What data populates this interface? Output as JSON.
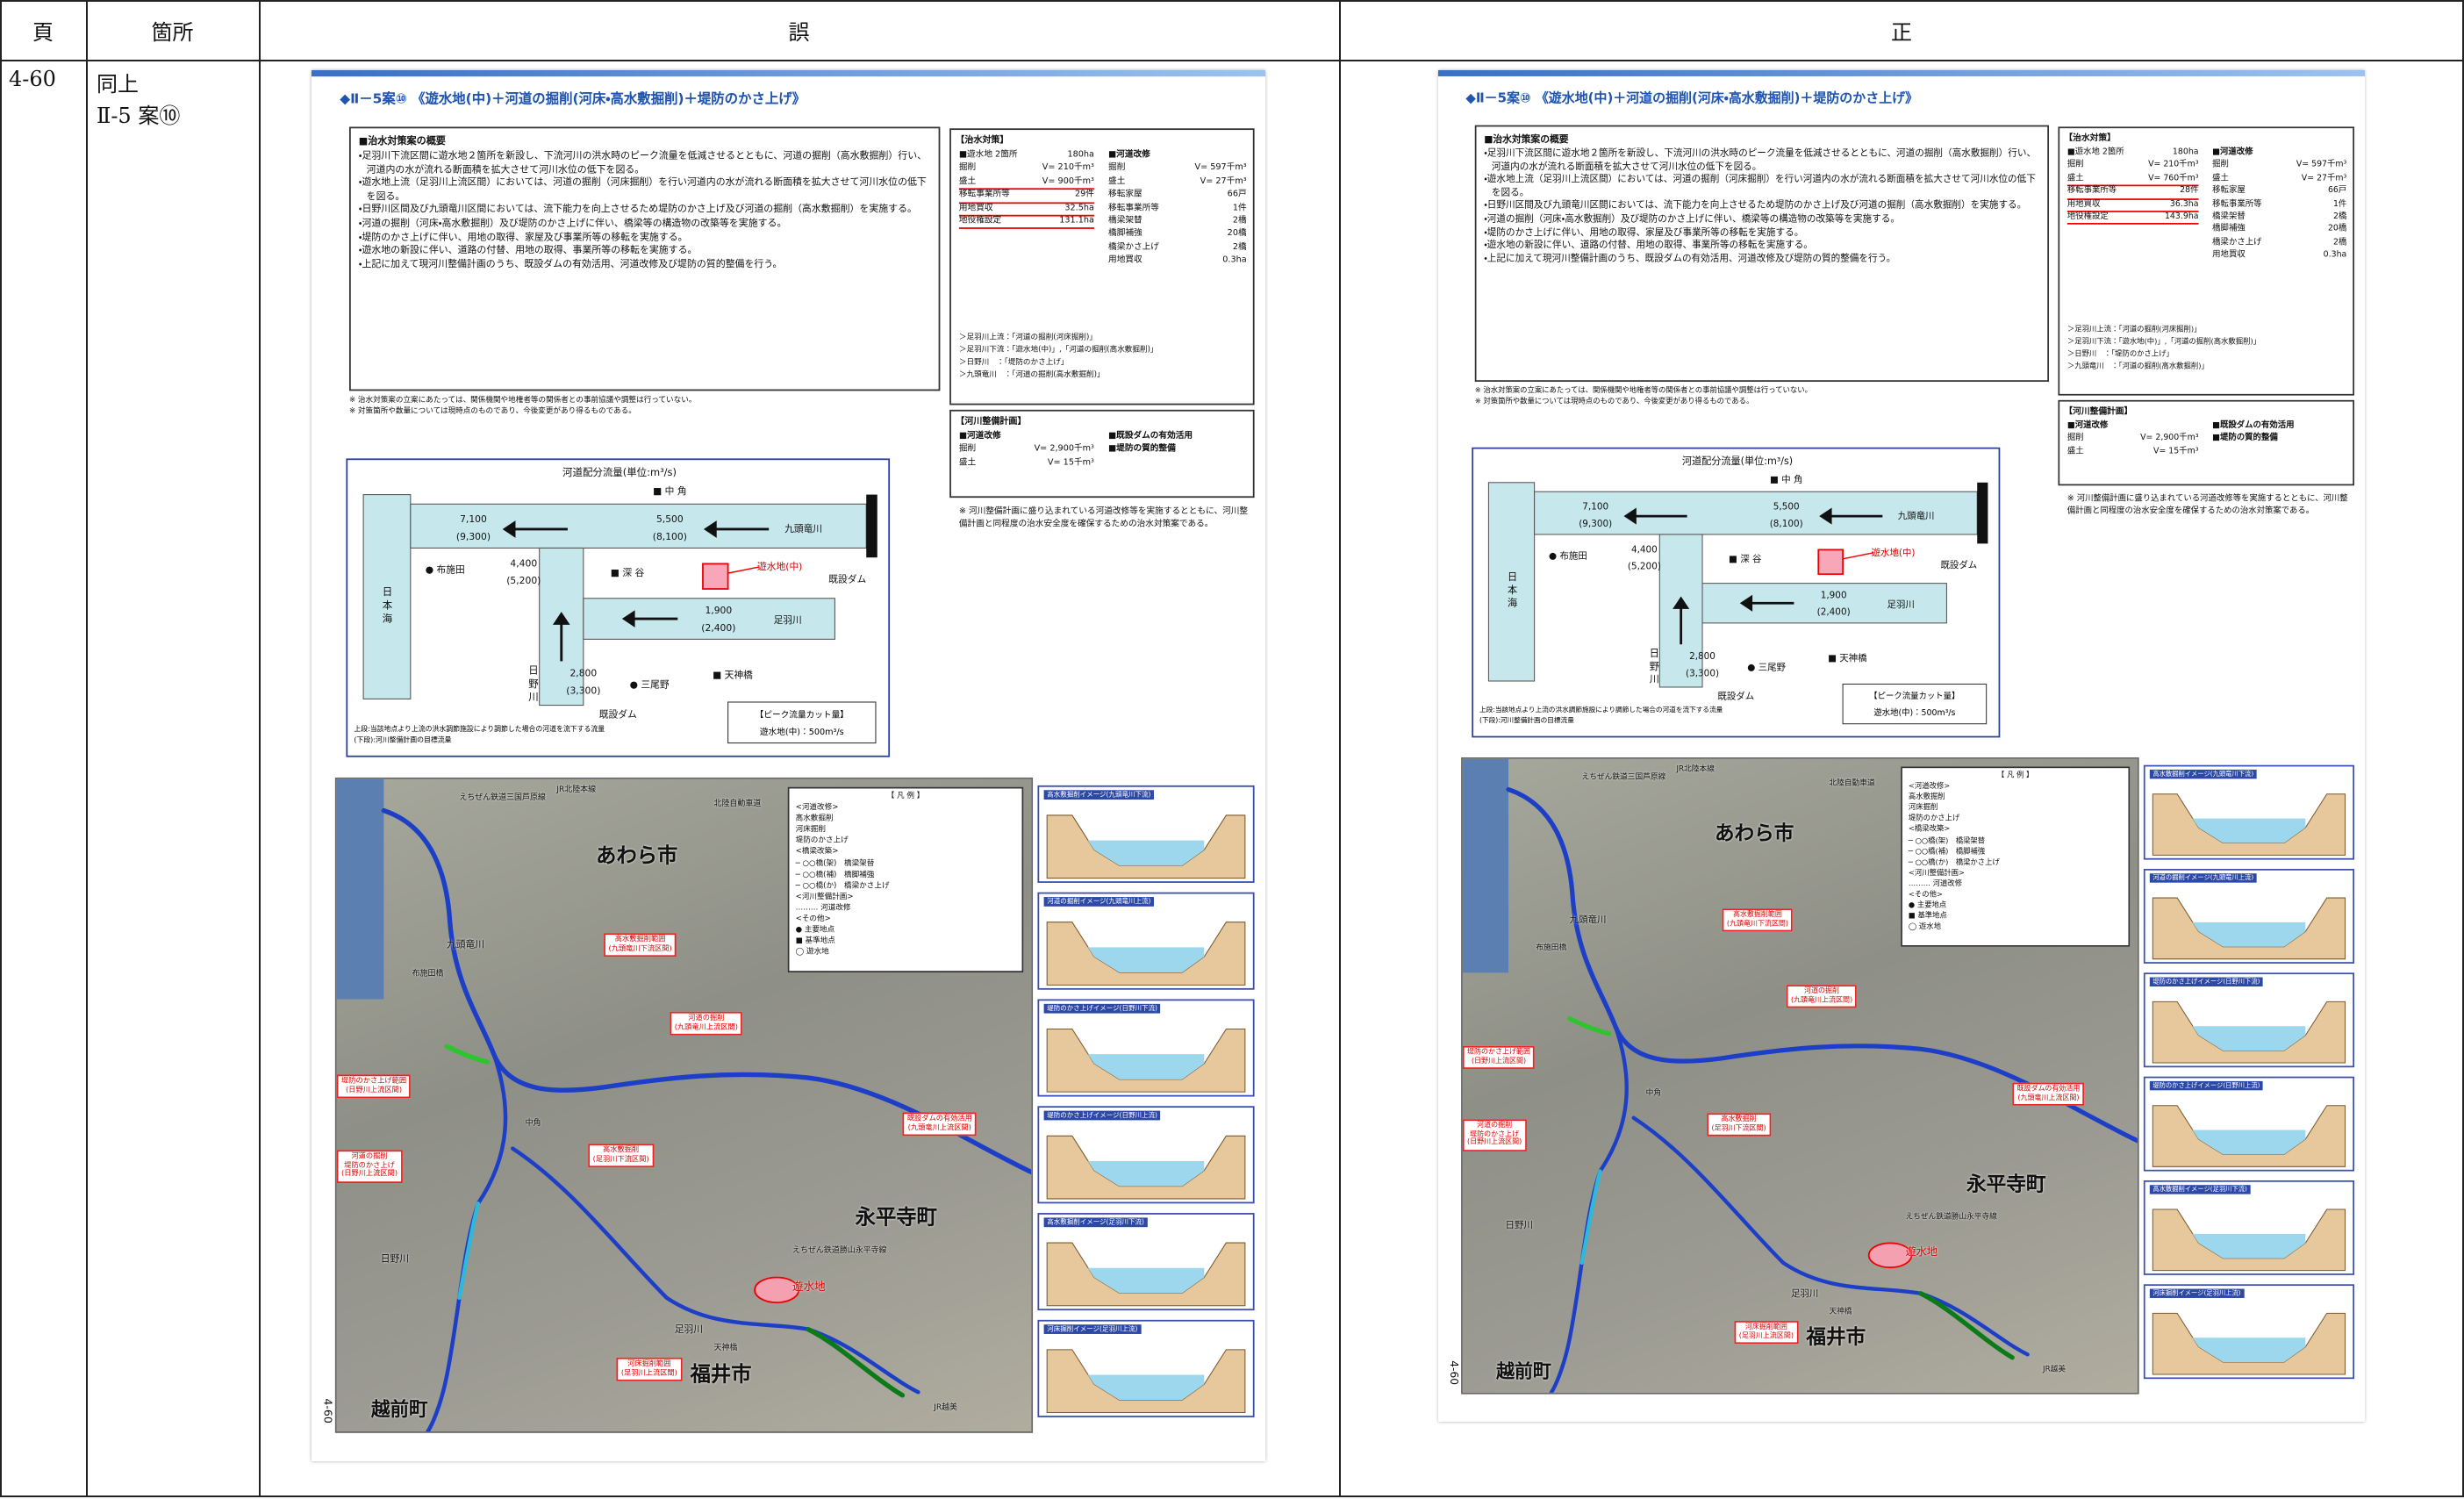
{
  "header": {
    "page": "頁",
    "location": "箇所",
    "wrong": "誤",
    "correct": "正"
  },
  "row": {
    "page": "4-60",
    "location": [
      "同上",
      "Ⅱ-5 案⑩"
    ]
  },
  "panels": [
    {
      "title": "◆Ⅱ－5案⑩ 《遊水地(中)＋河道の掘削(河床・高水敷掘削)＋堤防のかさ上げ》",
      "overview_heading": "■治水対策案の概要",
      "bullets": [
        "・足羽川下流区間に遊水地２箇所を新設し、下流河川の洪水時のピーク流量を低減させるとともに、河道の掘削（高水敷掘削）行い、河道内の水が流れる断面積を拡大させて河川水位の低下を図る。",
        "・遊水地上流（足羽川上流区間）においては、河道の掘削（河床掘削）を行い河道内の水が流れる断面積を拡大させて河川水位の低下を図る。",
        "・日野川区間及び九頭竜川区間においては、流下能力を向上させるため堤防のかさ上げ及び河道の掘削（高水敷掘削）を実施する。",
        "・河道の掘削（河床・高水敷掘削）及び堤防のかさ上げに伴い、橋梁等の構造物の改築等を実施する。",
        "・堤防のかさ上げに伴い、用地の取得、家屋及び事業所等の移転を実施する。",
        "・遊水地の新設に伴い、道路の付替、用地の取得、事業所等の移転を実施する。",
        "・上記に加えて現河川整備計画のうち、既設ダムの有効活用、河道改修及び堤防の質的整備を行う。"
      ],
      "notes": [
        "※ 治水対策案の立案にあたっては、関係機関や地権者等の関係者との事前協議や調整は行っていない。",
        "※ 対策箇所や数量については現時点のものであり、今後変更があり得るものである。"
      ],
      "measures": {
        "heading": "【治水対策】",
        "left": [
          [
            "■遊水地 2箇所",
            "180ha"
          ],
          [
            "掘削",
            "V= 210千m³"
          ],
          [
            "盛土",
            "V= 900千m³"
          ],
          [
            "移転事業所等",
            "29件"
          ],
          [
            "用地買収",
            "32.5ha"
          ],
          [
            "地役権設定",
            "131.1ha"
          ]
        ],
        "right": [
          [
            "■河道改修"
          ],
          [
            "掘削",
            "V= 597千m³"
          ],
          [
            "盛土",
            "V= 27千m³"
          ],
          [
            "移転家屋",
            "66戸"
          ],
          [
            "移転事業所等",
            "1件"
          ],
          [
            "橋梁架替",
            "2橋"
          ],
          [
            "橋脚補強",
            "20橋"
          ],
          [
            "橋梁かさ上げ",
            "2橋"
          ],
          [
            "用地買収",
            "0.3ha"
          ]
        ],
        "rivers": [
          "＞足羽川上流：「河道の掘削(河床掘削)」",
          "＞足羽川下流：「遊水地(中)」,「河道の掘削(高水敷掘削)」",
          "＞日野川　：「堤防のかさ上げ」",
          "＞九頭竜川　：「河道の掘削(高水敷掘削)」"
        ]
      },
      "plan": {
        "heading": "【河川整備計画】",
        "left": [
          [
            "■河道改修"
          ],
          [
            "掘削",
            "V= 2,900千m³"
          ],
          [
            "盛土",
            "V= 15千m³"
          ]
        ],
        "right": [
          [
            "■既設ダムの有効活用"
          ],
          [
            "■堤防の質的整備"
          ]
        ],
        "note": "※ 河川整備計画に盛り込まれている河道改修等を実施するとともに、河川整備計画と同程度の治水安全度を確保するための治水対策案である。"
      },
      "flow": {
        "title": "河道配分流量(単位:m³/s)",
        "labels": [
          "■ 中 角",
          "7,100",
          "(9,300)",
          "5,500",
          "(8,100)",
          "九頭竜川",
          "日 本 海",
          "● 布施田",
          "4,400",
          "(5,200)",
          "■ 深 谷",
          "遊水地(中)",
          "既設ダム",
          "1,900",
          "(2,400)",
          "足羽川",
          "■ 天神橋",
          "2,800",
          "(3,300)",
          "● 三尾野",
          "日 野 川",
          "既設ダム"
        ],
        "caption": [
          "上段:当該地点より上流の洪水調節施設により調節した場合の河道を流下する流量",
          "(下段):河川整備計画の目標流量"
        ],
        "cut_title": "【ピーク流量カット量】",
        "cut_value": "遊水地(中)：500m³/s"
      },
      "map": {
        "labels": [
          "あわら市",
          "永平寺町",
          "福井市",
          "越前町",
          "九頭竜川",
          "足羽川",
          "日野川",
          "遊水地",
          "JR北陸本線",
          "えちぜん鉄道三国芦原線",
          "北陸自動車道",
          "天神橋",
          "中角",
          "布施田橋",
          "えちぜん鉄道勝山永平寺線",
          "JR越美"
        ],
        "annotations": [
          "高水敷掘削範囲\n(九頭竜川下流区間)",
          "河道の掘削\n(九頭竜川上流区間)",
          "堤防のかさ上げ範囲\n(日野川上流区間)",
          "河道の掘削\n堤防のかさ上げ\n(日野川上流区間)",
          "高水敷掘削\n(足羽川下流区間)",
          "既設ダムの有効活用\n(九頭竜川上流区間)",
          "河床掘削範囲\n(足羽川上流区間)"
        ],
        "legend": [
          "【 凡 例 】",
          "<河道改修>",
          "高水敷掘削",
          "河床掘削",
          "堤防のかさ上げ",
          "<橋梁改築>",
          "─ ○○橋(架)　橋梁架替",
          "─ ○○橋(補)　橋脚補強",
          "─ ○○橋(か)　橋梁かさ上げ",
          "<河川整備計画>",
          "……… 河道改修",
          "<その他>",
          "● 主要地点",
          "■ 基準地点",
          "◯ 遊水地"
        ]
      },
      "sections": [
        "高水敷掘削イメージ(九頭竜川下流)",
        "河道の掘削イメージ(九頭竜川上流)",
        "堤防のかさ上げイメージ(日野川下流)",
        "堤防のかさ上げイメージ(日野川上流)",
        "高水敷掘削イメージ(足羽川下流)",
        "河床掘削イメージ(足羽川上流)"
      ],
      "page_number": "4-60"
    },
    {
      "title": "◆Ⅱ－5案⑩ 《遊水地(中)＋河道の掘削(河床・高水敷掘削)＋堤防のかさ上げ》",
      "overview_heading": "■治水対策案の概要",
      "bullets": [
        "・足羽川下流区間に遊水地２箇所を新設し、下流河川の洪水時のピーク流量を低減させるとともに、河道の掘削（高水敷掘削）行い、河道内の水が流れる断面積を拡大させて河川水位の低下を図る。",
        "・遊水地上流（足羽川上流区間）においては、河道の掘削（河床掘削）を行い河道内の水が流れる断面積を拡大させて河川水位の低下を図る。",
        "・日野川区間及び九頭竜川区間においては、流下能力を向上させるため堤防のかさ上げ及び河道の掘削（高水敷掘削）を実施する。",
        "・河道の掘削（河床・高水敷掘削）及び堤防のかさ上げに伴い、橋梁等の構造物の改築等を実施する。",
        "・堤防のかさ上げに伴い、用地の取得、家屋及び事業所等の移転を実施する。",
        "・遊水地の新設に伴い、道路の付替、用地の取得、事業所等の移転を実施する。",
        "・上記に加えて現河川整備計画のうち、既設ダムの有効活用、河道改修及び堤防の質的整備を行う。"
      ],
      "notes": [
        "※ 治水対策案の立案にあたっては、関係機関や地権者等の関係者との事前協議や調整は行っていない。",
        "※ 対策箇所や数量については現時点のものであり、今後変更があり得るものである。"
      ],
      "measures": {
        "heading": "【治水対策】",
        "left": [
          [
            "■遊水地 2箇所",
            "180ha"
          ],
          [
            "掘削",
            "V= 210千m³"
          ],
          [
            "盛土",
            "V= 760千m³"
          ],
          [
            "移転事業所等",
            "28件"
          ],
          [
            "用地買収",
            "36.3ha"
          ],
          [
            "地役権設定",
            "143.9ha"
          ]
        ],
        "right": [
          [
            "■河道改修"
          ],
          [
            "掘削",
            "V= 597千m³"
          ],
          [
            "盛土",
            "V= 27千m³"
          ],
          [
            "移転家屋",
            "66戸"
          ],
          [
            "移転事業所等",
            "1件"
          ],
          [
            "橋梁架替",
            "2橋"
          ],
          [
            "橋脚補強",
            "20橋"
          ],
          [
            "橋梁かさ上げ",
            "2橋"
          ],
          [
            "用地買収",
            "0.3ha"
          ]
        ],
        "rivers": [
          "＞足羽川上流：「河道の掘削(河床掘削)」",
          "＞足羽川下流：「遊水地(中)」,「河道の掘削(高水敷掘削)」",
          "＞日野川　：「堤防のかさ上げ」",
          "＞九頭竜川　：「河道の掘削(高水敷掘削)」"
        ]
      },
      "plan": {
        "heading": "【河川整備計画】",
        "left": [
          [
            "■河道改修"
          ],
          [
            "掘削",
            "V= 2,900千m³"
          ],
          [
            "盛土",
            "V= 15千m³"
          ]
        ],
        "right": [
          [
            "■既設ダムの有効活用"
          ],
          [
            "■堤防の質的整備"
          ]
        ],
        "note": "※ 河川整備計画に盛り込まれている河道改修等を実施するとともに、河川整備計画と同程度の治水安全度を確保するための治水対策案である。"
      },
      "flow": {
        "title": "河道配分流量(単位:m³/s)",
        "labels": [
          "■ 中 角",
          "7,100",
          "(9,300)",
          "5,500",
          "(8,100)",
          "九頭竜川",
          "日 本 海",
          "● 布施田",
          "4,400",
          "(5,200)",
          "■ 深 谷",
          "遊水地(中)",
          "既設ダム",
          "1,900",
          "(2,400)",
          "足羽川",
          "■ 天神橋",
          "2,800",
          "(3,300)",
          "● 三尾野",
          "日 野 川",
          "既設ダム"
        ],
        "caption": [
          "上段:当該地点より上流の洪水調節施設により調節した場合の河道を流下する流量",
          "(下段):河川整備計画の目標流量"
        ],
        "cut_title": "【ピーク流量カット量】",
        "cut_value": "遊水地(中)：500m³/s"
      },
      "map": {
        "labels": [
          "あわら市",
          "永平寺町",
          "福井市",
          "越前町",
          "九頭竜川",
          "足羽川",
          "日野川",
          "遊水地",
          "JR北陸本線",
          "えちぜん鉄道三国芦原線",
          "北陸自動車道",
          "天神橋",
          "中角",
          "布施田橋",
          "えちぜん鉄道勝山永平寺線",
          "JR越美"
        ],
        "annotations": [
          "高水敷掘削範囲\n(九頭竜川下流区間)",
          "河道の掘削\n(九頭竜川上流区間)",
          "堤防のかさ上げ範囲\n(日野川上流区間)",
          "河道の掘削\n堤防のかさ上げ\n(日野川上流区間)",
          "高水敷掘削\n(足羽川下流区間)",
          "既設ダムの有効活用\n(九頭竜川上流区間)",
          "河床掘削範囲\n(足羽川上流区間)"
        ],
        "legend": [
          "【 凡 例 】",
          "<河道改修>",
          "高水敷掘削",
          "河床掘削",
          "堤防のかさ上げ",
          "<橋梁改築>",
          "─ ○○橋(架)　橋梁架替",
          "─ ○○橋(補)　橋脚補強",
          "─ ○○橋(か)　橋梁かさ上げ",
          "<河川整備計画>",
          "……… 河道改修",
          "<その他>",
          "● 主要地点",
          "■ 基準地点",
          "◯ 遊水地"
        ]
      },
      "sections": [
        "高水敷掘削イメージ(九頭竜川下流)",
        "河道の掘削イメージ(九頭竜川上流)",
        "堤防のかさ上げイメージ(日野川下流)",
        "堤防のかさ上げイメージ(日野川上流)",
        "高水敷掘削イメージ(足羽川下流)",
        "河床掘削イメージ(足羽川上流)"
      ],
      "page_number": "4-60"
    }
  ]
}
